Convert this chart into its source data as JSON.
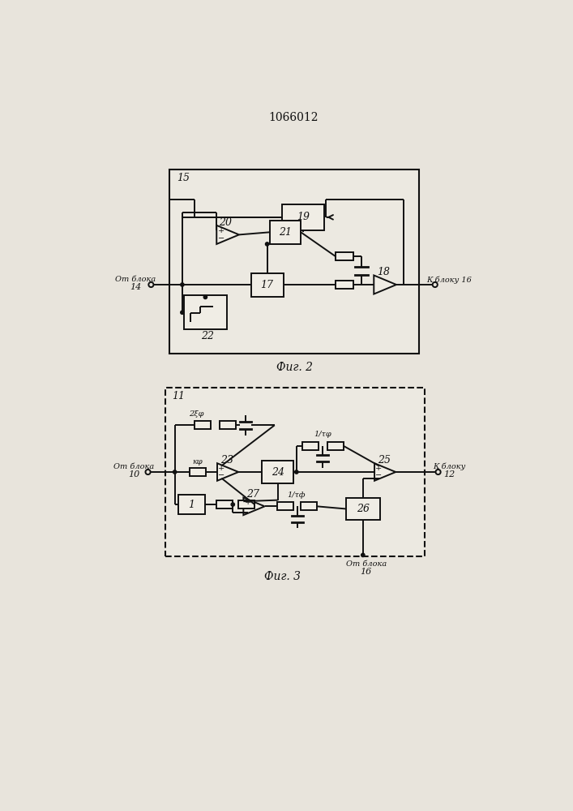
{
  "title": "1066012",
  "fig2_caption": "Фиг. 2",
  "fig3_caption": "Фиг. 3",
  "bg_color": "#e8e4dc",
  "line_color": "#111111",
  "font_color": "#111111"
}
